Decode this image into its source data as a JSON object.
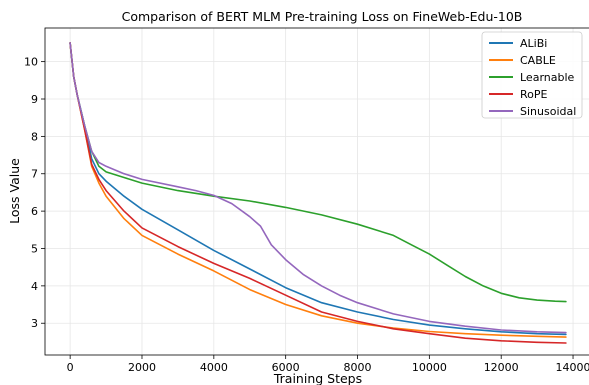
{
  "chart_data": {
    "type": "line",
    "title": "Comparison of BERT MLM Pre-training Loss on FineWeb-Edu-10B",
    "xlabel": "Training Steps",
    "ylabel": "Loss Value",
    "xlim": [
      -700,
      14500
    ],
    "ylim": [
      2.15,
      10.9
    ],
    "xticks": [
      0,
      2000,
      4000,
      6000,
      8000,
      10000,
      12000,
      14000
    ],
    "xtick_labels": [
      "0",
      "2000",
      "4000",
      "6000",
      "8000",
      "10000",
      "12000",
      "14000"
    ],
    "yticks": [
      3,
      4,
      5,
      6,
      7,
      8,
      9,
      10
    ],
    "ytick_labels": [
      "3",
      "4",
      "5",
      "6",
      "7",
      "8",
      "9",
      "10"
    ],
    "grid": true,
    "legend_position": "top-right",
    "series": [
      {
        "name": "ALiBi",
        "color": "#1f77b4",
        "x": [
          0,
          100,
          200,
          400,
          600,
          800,
          1000,
          1500,
          2000,
          3000,
          4000,
          5000,
          6000,
          7000,
          8000,
          9000,
          10000,
          11000,
          12000,
          13000,
          13800
        ],
        "y": [
          10.5,
          9.6,
          9.1,
          8.3,
          7.4,
          7.0,
          6.8,
          6.4,
          6.05,
          5.5,
          4.95,
          4.45,
          3.95,
          3.55,
          3.3,
          3.1,
          2.95,
          2.85,
          2.77,
          2.72,
          2.7
        ]
      },
      {
        "name": "CABLE",
        "color": "#ff7f0e",
        "x": [
          0,
          100,
          200,
          400,
          600,
          800,
          1000,
          1500,
          2000,
          3000,
          4000,
          5000,
          6000,
          7000,
          8000,
          9000,
          10000,
          11000,
          12000,
          13000,
          13800
        ],
        "y": [
          10.5,
          9.6,
          9.1,
          8.2,
          7.2,
          6.75,
          6.4,
          5.8,
          5.35,
          4.85,
          4.4,
          3.9,
          3.5,
          3.2,
          3.0,
          2.87,
          2.78,
          2.72,
          2.68,
          2.65,
          2.63
        ]
      },
      {
        "name": "Learnable",
        "color": "#2ca02c",
        "x": [
          0,
          100,
          200,
          400,
          600,
          800,
          1000,
          1500,
          2000,
          3000,
          4000,
          5000,
          6000,
          7000,
          8000,
          9000,
          9500,
          10000,
          10500,
          11000,
          11500,
          12000,
          12500,
          13000,
          13500,
          13800
        ],
        "y": [
          10.5,
          9.6,
          9.1,
          8.3,
          7.6,
          7.2,
          7.05,
          6.9,
          6.75,
          6.55,
          6.4,
          6.27,
          6.1,
          5.9,
          5.65,
          5.35,
          5.1,
          4.85,
          4.55,
          4.25,
          4.0,
          3.8,
          3.68,
          3.62,
          3.59,
          3.58
        ]
      },
      {
        "name": "RoPE",
        "color": "#d62728",
        "x": [
          0,
          100,
          200,
          400,
          600,
          800,
          1000,
          1500,
          2000,
          3000,
          4000,
          5000,
          6000,
          7000,
          8000,
          9000,
          10000,
          11000,
          12000,
          13000,
          13800
        ],
        "y": [
          10.5,
          9.6,
          9.1,
          8.2,
          7.25,
          6.85,
          6.55,
          6.0,
          5.55,
          5.05,
          4.6,
          4.2,
          3.75,
          3.3,
          3.05,
          2.85,
          2.72,
          2.6,
          2.53,
          2.49,
          2.47
        ]
      },
      {
        "name": "Sinusoidal",
        "color": "#9467bd",
        "x": [
          0,
          100,
          200,
          400,
          600,
          800,
          1000,
          1500,
          2000,
          3000,
          3500,
          4000,
          4500,
          5000,
          5300,
          5600,
          6000,
          6500,
          7000,
          7500,
          8000,
          9000,
          10000,
          11000,
          12000,
          13000,
          13800
        ],
        "y": [
          10.5,
          9.6,
          9.1,
          8.3,
          7.6,
          7.3,
          7.2,
          7.0,
          6.85,
          6.65,
          6.55,
          6.42,
          6.2,
          5.85,
          5.6,
          5.1,
          4.7,
          4.3,
          4.0,
          3.75,
          3.55,
          3.25,
          3.05,
          2.92,
          2.82,
          2.77,
          2.75
        ]
      }
    ]
  }
}
